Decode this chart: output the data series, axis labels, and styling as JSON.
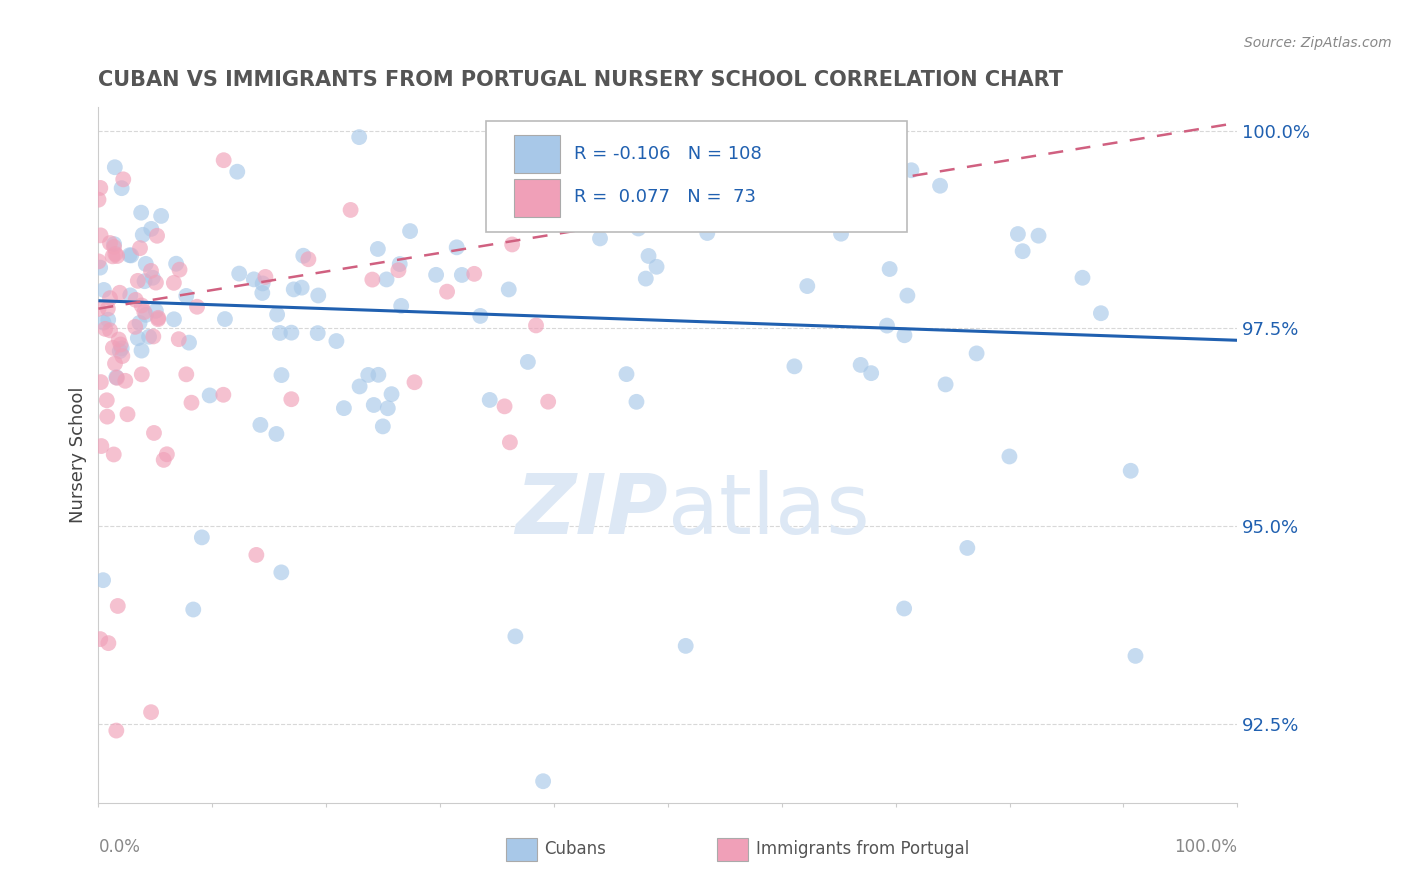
{
  "title": "CUBAN VS IMMIGRANTS FROM PORTUGAL NURSERY SCHOOL CORRELATION CHART",
  "source": "Source: ZipAtlas.com",
  "ylabel": "Nursery School",
  "legend_cubans_R": "-0.106",
  "legend_cubans_N": "108",
  "legend_portugal_R": "0.077",
  "legend_portugal_N": "73",
  "legend_label1": "Cubans",
  "legend_label2": "Immigrants from Portugal",
  "blue_color": "#a8c8e8",
  "pink_color": "#f0a0b8",
  "blue_line_color": "#2060b0",
  "pink_line_color": "#d06080",
  "background_color": "#ffffff",
  "grid_color": "#d8d8d8",
  "watermark_color": "#dde8f5",
  "ytick_labels": [
    "92.5%",
    "95.0%",
    "97.5%",
    "100.0%"
  ],
  "ytick_values": [
    0.925,
    0.95,
    0.975,
    1.0
  ],
  "ymin": 0.915,
  "ymax": 1.003,
  "xmin": 0.0,
  "xmax": 1.0,
  "blue_line_x0": 0.0,
  "blue_line_x1": 1.0,
  "blue_line_y0": 0.9785,
  "blue_line_y1": 0.9735,
  "pink_line_x0": 0.0,
  "pink_line_x1": 1.0,
  "pink_line_y0": 0.9775,
  "pink_line_y1": 1.001
}
